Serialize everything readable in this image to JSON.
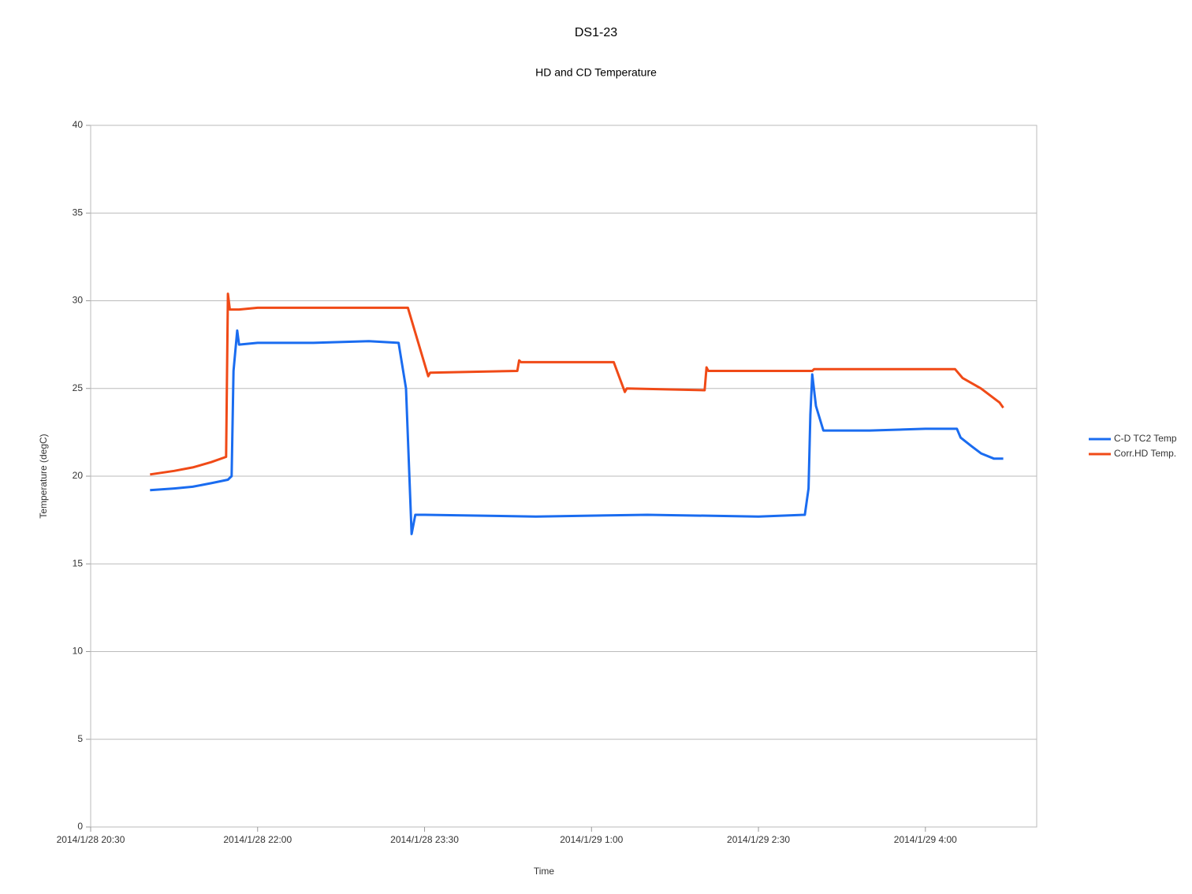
{
  "chart_data": {
    "type": "line",
    "title": "DS1-23",
    "subtitle": "HD and CD Temperature",
    "x_label": "Time",
    "y_label": "Temperature (degC)",
    "xlim": [
      "2014/1/28 20:30",
      "2014/1/29 5:00"
    ],
    "xticks": [
      "2014/1/28 20:30",
      "2014/1/28 22:00",
      "2014/1/28 23:30",
      "2014/1/29 1:00",
      "2014/1/29 2:30",
      "2014/1/29 4:00"
    ],
    "ylim": [
      0,
      40
    ],
    "yticks": [
      0,
      5,
      10,
      15,
      20,
      25,
      30,
      35,
      40
    ],
    "grid": true,
    "legend": "right",
    "series": [
      {
        "name": "C-D TC2 Temp",
        "color": "#1a6cf0",
        "x": [
          "2014/1/28 21:02",
          "2014/1/28 21:15",
          "2014/1/28 21:25",
          "2014/1/28 21:35",
          "2014/1/28 21:44",
          "2014/1/28 21:46",
          "2014/1/28 21:47",
          "2014/1/28 21:49",
          "2014/1/28 21:50",
          "2014/1/28 22:00",
          "2014/1/28 22:30",
          "2014/1/28 23:00",
          "2014/1/28 23:16",
          "2014/1/28 23:20",
          "2014/1/28 23:23",
          "2014/1/28 23:25",
          "2014/1/28 23:30",
          "2014/1/29 0:30",
          "2014/1/29 1:30",
          "2014/1/29 2:30",
          "2014/1/29 2:55",
          "2014/1/29 2:57",
          "2014/1/29 2:58",
          "2014/1/29 2:59",
          "2014/1/29 3:01",
          "2014/1/29 3:05",
          "2014/1/29 3:30",
          "2014/1/29 4:00",
          "2014/1/29 4:17",
          "2014/1/29 4:19",
          "2014/1/29 4:25",
          "2014/1/29 4:30",
          "2014/1/29 4:37",
          "2014/1/29 4:42"
        ],
        "values": [
          19.2,
          19.3,
          19.4,
          19.6,
          19.8,
          20.0,
          26.0,
          28.3,
          27.5,
          27.6,
          27.6,
          27.7,
          27.6,
          25.0,
          16.7,
          17.8,
          17.8,
          17.7,
          17.8,
          17.7,
          17.8,
          19.3,
          23.5,
          25.8,
          24.0,
          22.6,
          22.6,
          22.7,
          22.7,
          22.2,
          21.7,
          21.3,
          21.0,
          21.0
        ]
      },
      {
        "name": "Corr.HD Temp.",
        "color": "#f04a17",
        "x": [
          "2014/1/28 21:02",
          "2014/1/28 21:15",
          "2014/1/28 21:25",
          "2014/1/28 21:35",
          "2014/1/28 21:43",
          "2014/1/28 21:44",
          "2014/1/28 21:45",
          "2014/1/28 21:50",
          "2014/1/28 22:00",
          "2014/1/28 23:21",
          "2014/1/28 23:32",
          "2014/1/28 23:33",
          "2014/1/29 0:20",
          "2014/1/29 0:21",
          "2014/1/29 0:22",
          "2014/1/29 1:12",
          "2014/1/29 1:18",
          "2014/1/29 1:19",
          "2014/1/29 2:01",
          "2014/1/29 2:02",
          "2014/1/29 2:03",
          "2014/1/29 2:59",
          "2014/1/29 3:00",
          "2014/1/29 4:16",
          "2014/1/29 4:20",
          "2014/1/29 4:30",
          "2014/1/29 4:40",
          "2014/1/29 4:42"
        ],
        "values": [
          20.1,
          20.3,
          20.5,
          20.8,
          21.1,
          30.4,
          29.5,
          29.5,
          29.6,
          29.6,
          25.7,
          25.9,
          26.0,
          26.6,
          26.5,
          26.5,
          24.8,
          25.0,
          24.9,
          26.2,
          26.0,
          26.0,
          26.1,
          26.1,
          25.6,
          25.0,
          24.2,
          23.9
        ]
      }
    ]
  }
}
